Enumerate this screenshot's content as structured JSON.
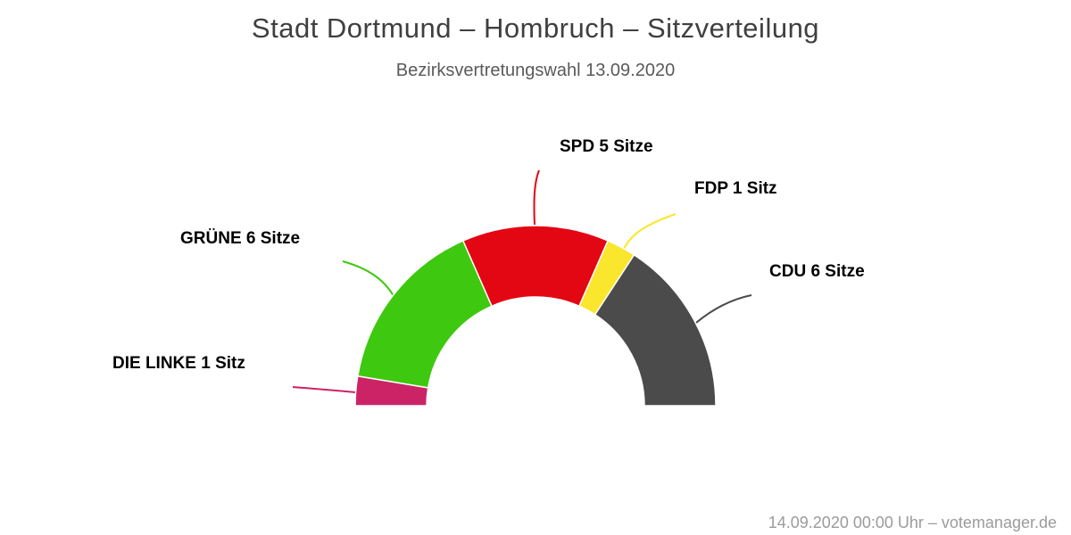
{
  "header": {
    "title": "Stadt Dortmund – Hombruch – Sitzverteilung",
    "subtitle": "Bezirksvertretungswahl 13.09.2020"
  },
  "footer": {
    "credits": "14.09.2020 00:00 Uhr – votemanager.de"
  },
  "chart_data": {
    "type": "half-donut",
    "title": "Stadt Dortmund – Hombruch – Sitzverteilung",
    "subtitle": "Bezirksvertretungswahl 13.09.2020",
    "total_seats": 19,
    "unit_singular": "Sitz",
    "unit_plural": "Sitze",
    "series": [
      {
        "name": "DIE LINKE",
        "seats": 1,
        "label": "DIE LINKE 1 Sitz",
        "color": "#cc2366"
      },
      {
        "name": "GRÜNE",
        "seats": 6,
        "label": "GRÜNE 6 Sitze",
        "color": "#3ec80f"
      },
      {
        "name": "SPD",
        "seats": 5,
        "label": "SPD 5 Sitze",
        "color": "#e30613"
      },
      {
        "name": "FDP",
        "seats": 1,
        "label": "FDP 1 Sitz",
        "color": "#fae62d"
      },
      {
        "name": "CDU",
        "seats": 6,
        "label": "CDU 6 Sitze",
        "color": "#4b4b4b"
      }
    ],
    "layout_hints": {
      "orientation": "semicircle-top",
      "order": "left-to-right",
      "labels": "outside-with-colored-connectors",
      "legend": "none",
      "background": "#ffffff"
    }
  }
}
